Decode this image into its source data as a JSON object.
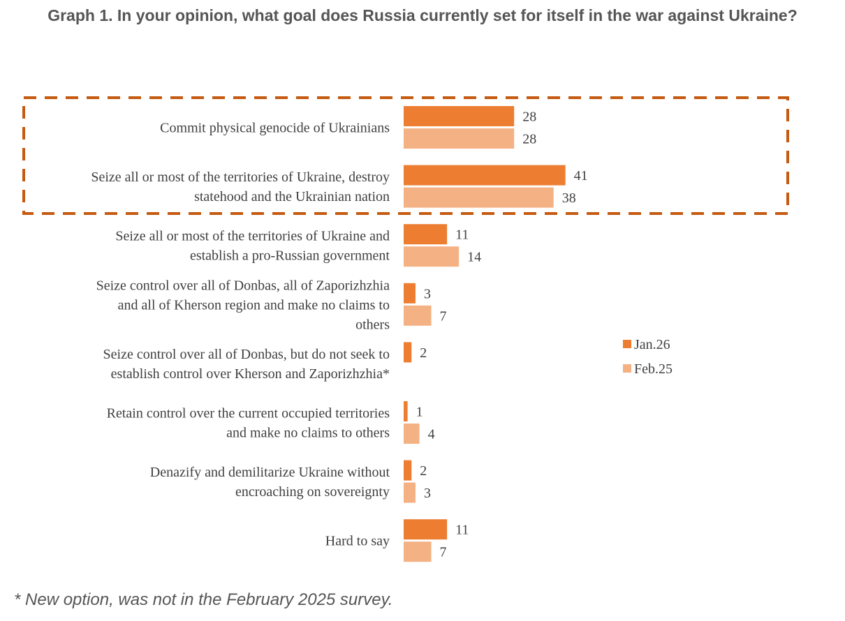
{
  "chart_data": {
    "type": "bar",
    "orientation": "horizontal",
    "title": "Graph 1. In your opinion, what goal does Russia currently set for itself in the war against Ukraine?",
    "categories": [
      [
        "Commit physical genocide of Ukrainians"
      ],
      [
        "Seize all or most of the territories of Ukraine, destroy",
        "statehood and the Ukrainian nation"
      ],
      [
        "Seize all or most of the territories of Ukraine and",
        "establish a pro-Russian government"
      ],
      [
        "Seize control over all of Donbas, all of Zaporizhzhia",
        "and all of Kherson region and make no claims to",
        "others"
      ],
      [
        "Seize control over all of Donbas, but do not seek to",
        "establish control over Kherson and Zaporizhzhia*"
      ],
      [
        "Retain control over the current occupied territories",
        "and make no claims to others"
      ],
      [
        "Denazify and demilitarize Ukraine without",
        "encroaching on sovereignty"
      ],
      [
        "Hard to say"
      ]
    ],
    "series": [
      {
        "name": "Jan.26",
        "color": "#ed7d31",
        "values": [
          28,
          41,
          11,
          3,
          2,
          1,
          2,
          11
        ]
      },
      {
        "name": "Feb.25",
        "color": "#f4b183",
        "values": [
          28,
          38,
          14,
          7,
          null,
          4,
          3,
          7
        ]
      }
    ],
    "legend": "right",
    "highlight_box_color": "#c55a11",
    "highlighted_categories": [
      0,
      1
    ],
    "footnote": "* New option, was not in the February 2025 survey."
  }
}
